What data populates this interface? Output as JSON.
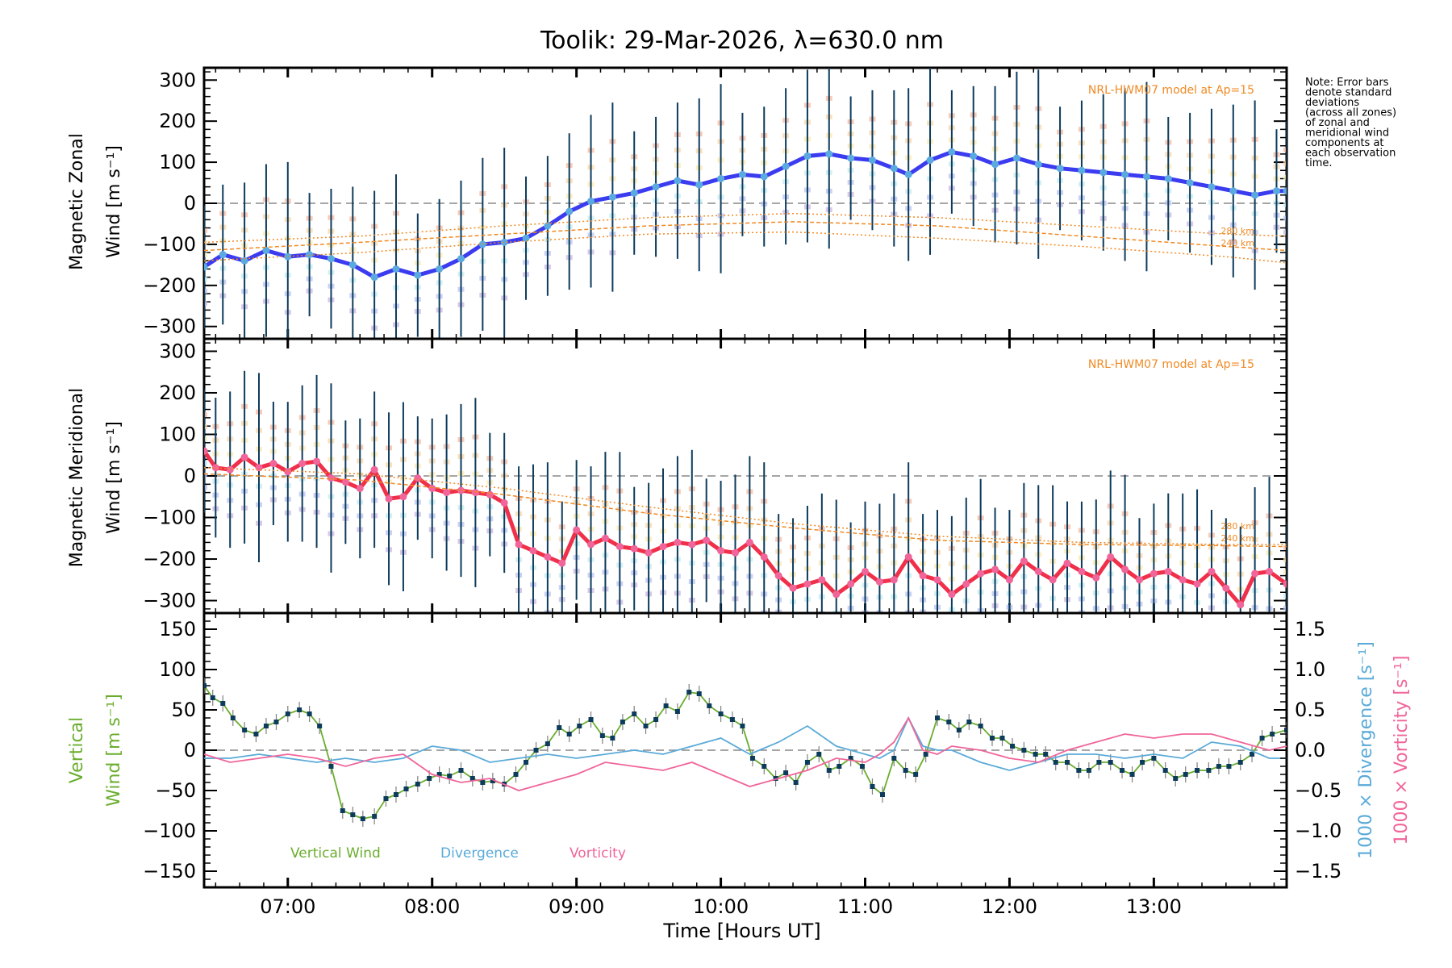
{
  "chart_data": [
    {
      "type": "line",
      "panel": "zonal",
      "title": "Toolik: 29-Mar-2026, λ=630.0 nm",
      "ylabel_line1": "Magnetic Zonal",
      "ylabel_line2": "Wind [m s⁻¹]",
      "ylim": [
        -330,
        330
      ],
      "yticks": [
        300,
        200,
        100,
        0,
        -100,
        -200,
        -300
      ],
      "model_label": "NRL-HWM07 model at Ap=15",
      "model_altitudes": [
        "280 km",
        "240 km"
      ],
      "zero_line": "dashed gray",
      "series": [
        {
          "name": "Zonal Wind",
          "color": "#3b3bf0",
          "x_hours": [
            6.42,
            6.55,
            6.7,
            6.85,
            7.0,
            7.15,
            7.3,
            7.45,
            7.6,
            7.75,
            7.9,
            8.05,
            8.2,
            8.35,
            8.5,
            8.65,
            8.8,
            8.95,
            9.1,
            9.25,
            9.4,
            9.55,
            9.7,
            9.85,
            10.0,
            10.15,
            10.3,
            10.45,
            10.6,
            10.75,
            10.9,
            11.05,
            11.2,
            11.3,
            11.45,
            11.6,
            11.75,
            11.9,
            12.05,
            12.2,
            12.35,
            12.5,
            12.65,
            12.8,
            12.95,
            13.1,
            13.25,
            13.4,
            13.55,
            13.7,
            13.85,
            13.92
          ],
          "values": [
            -155,
            -125,
            -140,
            -115,
            -130,
            -125,
            -135,
            -150,
            -180,
            -160,
            -175,
            -160,
            -135,
            -100,
            -95,
            -85,
            -55,
            -20,
            5,
            15,
            25,
            40,
            55,
            45,
            60,
            70,
            65,
            90,
            115,
            120,
            110,
            105,
            85,
            70,
            105,
            125,
            115,
            95,
            110,
            95,
            85,
            80,
            75,
            70,
            65,
            60,
            50,
            40,
            30,
            20,
            30,
            30
          ],
          "error_bar_color": "#0d3b5c"
        },
        {
          "name": "HWM07 280 km",
          "color": "#f08a24",
          "style": "dotted",
          "x_hours": [
            6.42,
            7.5,
            8.5,
            9.5,
            10.5,
            11.5,
            12.5,
            13.5,
            13.92
          ],
          "values": [
            -95,
            -80,
            -55,
            -35,
            -25,
            -35,
            -55,
            -75,
            -80
          ]
        },
        {
          "name": "HWM07 240 km",
          "color": "#f08a24",
          "style": "dashed",
          "x_hours": [
            6.42,
            7.5,
            8.5,
            9.5,
            10.5,
            11.5,
            12.5,
            13.5,
            13.92
          ],
          "values": [
            -115,
            -95,
            -75,
            -55,
            -45,
            -55,
            -80,
            -105,
            -115
          ]
        },
        {
          "name": "HWM07 lower",
          "color": "#f08a24",
          "style": "dotted",
          "x_hours": [
            6.42,
            7.5,
            8.5,
            9.5,
            10.5,
            11.5,
            12.5,
            13.5,
            13.92
          ],
          "values": [
            -140,
            -120,
            -95,
            -75,
            -70,
            -85,
            -105,
            -130,
            -145
          ]
        }
      ]
    },
    {
      "type": "line",
      "panel": "meridional",
      "ylabel_line1": "Magnetic Meridional",
      "ylabel_line2": "Wind [m s⁻¹]",
      "ylim": [
        -330,
        330
      ],
      "yticks": [
        300,
        200,
        100,
        0,
        -100,
        -200,
        -300
      ],
      "model_label": "NRL-HWM07 model at Ap=15",
      "model_altitudes": [
        "280 km",
        "240 km"
      ],
      "zero_line": "dashed gray",
      "series": [
        {
          "name": "Meridional Wind",
          "color": "#f0304a",
          "x_hours": [
            6.42,
            6.5,
            6.6,
            6.7,
            6.8,
            6.9,
            7.0,
            7.1,
            7.2,
            7.3,
            7.4,
            7.5,
            7.6,
            7.7,
            7.8,
            7.9,
            8.0,
            8.1,
            8.2,
            8.3,
            8.4,
            8.5,
            8.6,
            8.7,
            8.8,
            8.9,
            9.0,
            9.1,
            9.2,
            9.3,
            9.4,
            9.5,
            9.6,
            9.7,
            9.8,
            9.9,
            10.0,
            10.1,
            10.2,
            10.3,
            10.4,
            10.5,
            10.6,
            10.7,
            10.8,
            10.9,
            11.0,
            11.1,
            11.2,
            11.3,
            11.4,
            11.5,
            11.6,
            11.7,
            11.8,
            11.9,
            12.0,
            12.1,
            12.2,
            12.3,
            12.4,
            12.5,
            12.6,
            12.7,
            12.8,
            12.9,
            13.0,
            13.1,
            13.2,
            13.3,
            13.4,
            13.5,
            13.6,
            13.7,
            13.8,
            13.92
          ],
          "values": [
            60,
            20,
            15,
            45,
            20,
            30,
            10,
            30,
            35,
            -5,
            -15,
            -30,
            15,
            -55,
            -50,
            -5,
            -30,
            -40,
            -35,
            -40,
            -45,
            -65,
            -165,
            -180,
            -195,
            -210,
            -130,
            -165,
            -150,
            -170,
            -175,
            -185,
            -170,
            -160,
            -165,
            -155,
            -180,
            -185,
            -160,
            -195,
            -240,
            -270,
            -260,
            -250,
            -285,
            -260,
            -230,
            -255,
            -250,
            -195,
            -240,
            -250,
            -285,
            -260,
            -235,
            -225,
            -250,
            -205,
            -230,
            -250,
            -210,
            -230,
            -245,
            -195,
            -225,
            -250,
            -235,
            -230,
            -250,
            -260,
            -230,
            -270,
            -310,
            -235,
            -230,
            -260
          ],
          "error_bar_color": "#0d3b5c"
        },
        {
          "name": "HWM07 280 km",
          "color": "#f08a24",
          "style": "dotted",
          "x_hours": [
            6.42,
            7.5,
            8.5,
            9.5,
            10.5,
            11.5,
            12.5,
            13.5,
            13.92
          ],
          "values": [
            20,
            5,
            -30,
            -75,
            -115,
            -145,
            -160,
            -165,
            -165
          ]
        },
        {
          "name": "HWM07 240 km",
          "color": "#f08a24",
          "style": "dashed",
          "x_hours": [
            6.42,
            7.5,
            8.5,
            9.5,
            10.5,
            11.5,
            12.5,
            13.5,
            13.92
          ],
          "values": [
            5,
            -10,
            -45,
            -90,
            -125,
            -155,
            -165,
            -168,
            -170
          ]
        }
      ]
    },
    {
      "type": "line",
      "panel": "vertical",
      "ylabel_line1": "Vertical",
      "ylabel_line2": "Wind [m s⁻¹]",
      "ylim": [
        -170,
        170
      ],
      "yticks": [
        150,
        100,
        50,
        0,
        -50,
        -100,
        -150
      ],
      "y2label_div": "1000 × Divergence [s⁻¹]",
      "y2label_vort": "1000 × Vorticity [s⁻¹]",
      "y2lim": [
        -1.7,
        1.7
      ],
      "y2ticks": [
        "1.5",
        "1.0",
        "0.5",
        "0.0",
        "−0.5",
        "−1.0",
        "−1.5"
      ],
      "xlabel": "Time [Hours UT]",
      "xticks": [
        "07:00",
        "08:00",
        "09:00",
        "10:00",
        "11:00",
        "12:00",
        "13:00"
      ],
      "xlim_hours": [
        6.42,
        13.92
      ],
      "legend": [
        {
          "label": "Vertical Wind",
          "color": "#6aad2e"
        },
        {
          "label": "Divergence",
          "color": "#5aaad8"
        },
        {
          "label": "Vorticity",
          "color": "#f0659a"
        }
      ],
      "series": [
        {
          "name": "Vertical Wind",
          "color": "#6aad2e",
          "marker_color": "#0d3b5c",
          "x_hours": [
            6.42,
            6.48,
            6.55,
            6.62,
            6.7,
            6.78,
            6.85,
            6.92,
            7.0,
            7.08,
            7.15,
            7.22,
            7.3,
            7.38,
            7.45,
            7.52,
            7.6,
            7.68,
            7.75,
            7.82,
            7.9,
            7.98,
            8.05,
            8.12,
            8.2,
            8.28,
            8.35,
            8.42,
            8.5,
            8.58,
            8.65,
            8.72,
            8.8,
            8.88,
            8.95,
            9.02,
            9.1,
            9.18,
            9.25,
            9.32,
            9.4,
            9.48,
            9.55,
            9.62,
            9.7,
            9.78,
            9.85,
            9.92,
            10.0,
            10.08,
            10.15,
            10.22,
            10.3,
            10.38,
            10.45,
            10.52,
            10.6,
            10.68,
            10.75,
            10.82,
            10.9,
            10.98,
            11.05,
            11.12,
            11.2,
            11.28,
            11.35,
            11.42,
            11.5,
            11.58,
            11.65,
            11.72,
            11.8,
            11.88,
            11.95,
            12.02,
            12.1,
            12.18,
            12.25,
            12.32,
            12.4,
            12.48,
            12.55,
            12.62,
            12.7,
            12.78,
            12.85,
            12.92,
            13.0,
            13.08,
            13.15,
            13.22,
            13.3,
            13.38,
            13.45,
            13.52,
            13.6,
            13.68,
            13.75,
            13.82,
            13.92
          ],
          "values": [
            80,
            65,
            58,
            40,
            25,
            20,
            30,
            35,
            45,
            50,
            45,
            30,
            -20,
            -75,
            -80,
            -85,
            -82,
            -60,
            -55,
            -48,
            -42,
            -35,
            -30,
            -32,
            -25,
            -35,
            -40,
            -38,
            -42,
            -30,
            -15,
            0,
            8,
            28,
            20,
            30,
            38,
            18,
            15,
            35,
            45,
            30,
            38,
            55,
            48,
            72,
            70,
            55,
            45,
            38,
            30,
            -10,
            -20,
            -35,
            -28,
            -40,
            -15,
            -5,
            -25,
            -20,
            -10,
            -20,
            -45,
            -55,
            -10,
            -25,
            -30,
            -5,
            40,
            35,
            25,
            35,
            30,
            15,
            15,
            5,
            0,
            -5,
            -5,
            -15,
            -15,
            -25,
            -25,
            -15,
            -15,
            -25,
            -30,
            -15,
            -10,
            -25,
            -35,
            -30,
            -25,
            -25,
            -20,
            -20,
            -15,
            -5,
            15,
            20,
            25,
            30
          ],
          "error_bar_color": "#808080"
        },
        {
          "name": "Divergence",
          "color": "#5aaad8",
          "axis": "y2",
          "x_hours": [
            6.42,
            6.6,
            6.8,
            7.0,
            7.2,
            7.4,
            7.6,
            7.8,
            8.0,
            8.2,
            8.4,
            8.6,
            8.8,
            9.0,
            9.2,
            9.4,
            9.6,
            9.8,
            10.0,
            10.2,
            10.4,
            10.6,
            10.8,
            11.0,
            11.1,
            11.2,
            11.3,
            11.4,
            11.5,
            11.6,
            11.8,
            12.0,
            12.2,
            12.4,
            12.6,
            12.8,
            13.0,
            13.2,
            13.4,
            13.6,
            13.8,
            13.92
          ],
          "values": [
            -0.1,
            -0.1,
            -0.05,
            -0.1,
            -0.15,
            -0.1,
            -0.15,
            -0.1,
            0.05,
            0.0,
            -0.15,
            -0.1,
            -0.05,
            -0.1,
            -0.05,
            0.0,
            -0.05,
            0.05,
            0.15,
            -0.05,
            0.1,
            0.3,
            0.05,
            -0.05,
            -0.1,
            0.0,
            0.4,
            0.05,
            0.0,
            0.0,
            -0.15,
            -0.25,
            -0.15,
            -0.05,
            -0.05,
            -0.1,
            -0.05,
            -0.1,
            0.1,
            0.05,
            -0.1,
            -0.1
          ]
        },
        {
          "name": "Vorticity",
          "color": "#f0659a",
          "axis": "y2",
          "x_hours": [
            6.42,
            6.6,
            6.8,
            7.0,
            7.2,
            7.4,
            7.6,
            7.8,
            8.0,
            8.2,
            8.4,
            8.6,
            8.8,
            9.0,
            9.2,
            9.4,
            9.6,
            9.8,
            10.0,
            10.2,
            10.4,
            10.6,
            10.8,
            11.0,
            11.1,
            11.2,
            11.3,
            11.4,
            11.5,
            11.6,
            11.8,
            12.0,
            12.2,
            12.4,
            12.6,
            12.8,
            13.0,
            13.2,
            13.4,
            13.6,
            13.8,
            13.92
          ],
          "values": [
            -0.05,
            -0.15,
            -0.1,
            -0.05,
            -0.1,
            -0.2,
            -0.1,
            -0.05,
            -0.3,
            -0.4,
            -0.35,
            -0.5,
            -0.4,
            -0.3,
            -0.15,
            -0.2,
            -0.25,
            -0.15,
            -0.3,
            -0.45,
            -0.35,
            -0.25,
            -0.1,
            -0.15,
            -0.05,
            0.1,
            0.4,
            0.0,
            -0.05,
            0.05,
            0.0,
            -0.1,
            -0.15,
            0.0,
            0.1,
            0.2,
            0.15,
            0.2,
            0.2,
            0.1,
            0.0,
            0.05
          ]
        }
      ]
    }
  ],
  "note": [
    "Note: Error bars",
    "denote standard",
    "deviations",
    "(across all zones)",
    "of zonal and",
    "meridional wind",
    "components at",
    "each observation",
    "time."
  ]
}
